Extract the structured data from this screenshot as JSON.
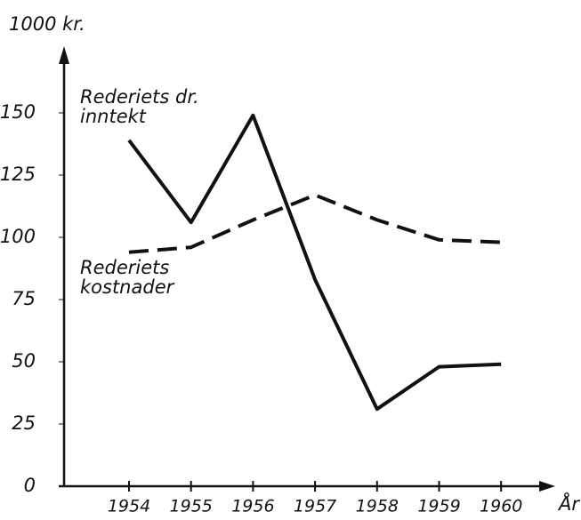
{
  "chart_data": {
    "type": "line",
    "y_axis_label": "1000 kr.",
    "x_axis_label": "År",
    "categories": [
      "1954",
      "1955",
      "1956",
      "1957",
      "1958",
      "1959",
      "1960"
    ],
    "series": [
      {
        "name": "Rederiets dr. inntekt",
        "color": "#111111",
        "dash": false,
        "values": [
          139,
          106,
          149,
          83,
          31,
          48,
          49
        ]
      },
      {
        "name": "Rederiets kostnader",
        "color": "#111111",
        "dash": true,
        "values": [
          94,
          96,
          107,
          117,
          107,
          99,
          98
        ]
      }
    ],
    "ylim": [
      0,
      175
    ],
    "yticks": [
      0,
      25,
      50,
      75,
      100,
      125,
      150
    ],
    "grid": false
  }
}
